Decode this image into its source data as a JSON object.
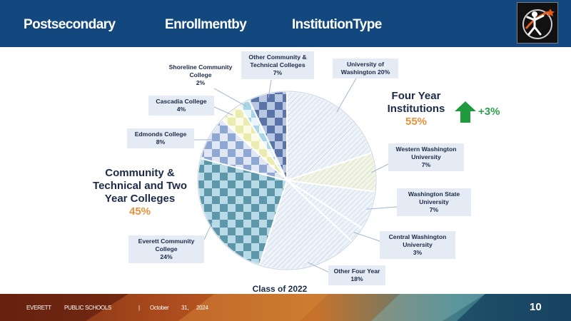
{
  "header": {
    "title_words": [
      "Postsecondary",
      "Enrollmentby",
      "InstitutionType"
    ]
  },
  "chart_data": {
    "type": "pie",
    "title": "Class of 2022",
    "slices": [
      {
        "label": "University of Washington",
        "value": 20,
        "display": "20%",
        "group": "four_year",
        "color": "#eaf0f7",
        "fill": "hatch-light"
      },
      {
        "label": "Western Washington University",
        "value": 7,
        "display": "7%",
        "group": "four_year",
        "color": "#eef2e2",
        "fill": "hatch-olive"
      },
      {
        "label": "Washington State University",
        "value": 7,
        "display": "7%",
        "group": "four_year",
        "color": "#edf2f8",
        "fill": "hatch-light"
      },
      {
        "label": "Central Washington University",
        "value": 3,
        "display": "3%",
        "group": "four_year",
        "color": "#d5dfee",
        "fill": "hatch-light"
      },
      {
        "label": "Other Four Year",
        "value": 18,
        "display": "18%",
        "group": "four_year",
        "color": "#f3f4f4",
        "fill": "hatch-light"
      },
      {
        "label": "Everett Community College",
        "value": 24,
        "display": "24%",
        "group": "community",
        "color": "#8fbcd0",
        "fill": "checker-teal"
      },
      {
        "label": "Edmonds College",
        "value": 8,
        "display": "8%",
        "group": "community",
        "color": "#a9bfe0",
        "fill": "checker-blue"
      },
      {
        "label": "Cascadia College",
        "value": 4,
        "display": "4%",
        "group": "community",
        "color": "#f2f4c8",
        "fill": "checker-yellow"
      },
      {
        "label": "Shoreline Community College",
        "value": 2,
        "display": "2%",
        "group": "community",
        "color": "#cde6ef",
        "fill": "checker-cyan"
      },
      {
        "label": "Other Community & Technical Colleges",
        "value": 7,
        "display": "7%",
        "group": "community",
        "color": "#7d93c0",
        "fill": "checker-navy"
      }
    ],
    "groups": {
      "four_year": {
        "label": "Four Year Institutions",
        "pct": "55%",
        "change": "+3%"
      },
      "community": {
        "label": "Community & Technical and Two Year Colleges",
        "pct": "45%"
      }
    }
  },
  "callouts": {
    "uw": "University of\nWashington 20%",
    "wwu": "Western Washington\nUniversity\n7%",
    "wsu": "Washington State\nUniversity\n7%",
    "cwu": "Central Washington\nUniversity\n3%",
    "other4": "Other Four Year\n18%",
    "ecc": "Everett Community\nCollege\n24%",
    "edmonds": "Edmonds College\n8%",
    "cascadia": "Cascadia College\n4%",
    "shoreline": "Shoreline Community\nCollege\n2%",
    "otherctc": "Other Community &\nTechnical Colleges\n7%"
  },
  "labels": {
    "four_year_line1": "Four Year",
    "four_year_line2": "Institutions",
    "four_year_pct": "55%",
    "four_year_change": "+3%",
    "ctc_line1": "Community &",
    "ctc_line2": "Technical and Two",
    "ctc_line3": "Year Colleges",
    "ctc_pct": "45%"
  },
  "footer": {
    "org1": "EVERETT",
    "org2": "PUBLIC SCHOOLS",
    "sep": "|",
    "month": "October",
    "day": "31,",
    "year": "2024",
    "page": "10"
  },
  "colors": {
    "header_bg": "#13487f",
    "accent_orange": "#e8913a",
    "up_arrow": "#1f9a3f",
    "text_navy": "#1b2a49"
  }
}
